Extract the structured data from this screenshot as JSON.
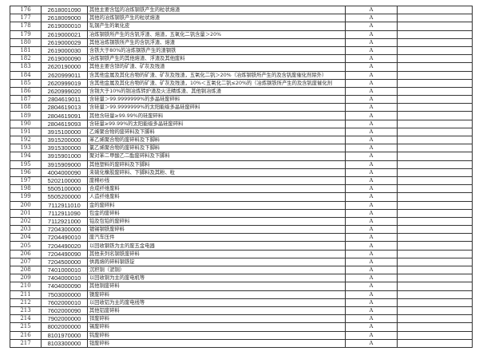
{
  "rows": [
    [
      "176",
      "2618001090",
      "其他主要含锰的冶炼钢铁产生的粒状熔渣",
      "A",
      ""
    ],
    [
      "177",
      "2618009000",
      "其他的冶炼钢铁产生的粒状熔渣",
      "A",
      ""
    ],
    [
      "178",
      "2619000010",
      "轧钢产生的氧化皮",
      "A",
      ""
    ],
    [
      "179",
      "2619000021",
      "冶炼钢铁所产生的含钒浮渣、熔渣，五氧化二钒含量＞20%",
      "A",
      ""
    ],
    [
      "180",
      "2619000029",
      "其他冶炼钢铁所产生的含钒浮渣、熔渣",
      "A",
      ""
    ],
    [
      "181",
      "2619000030",
      "含铁大于80%的冶炼钢铁产生的渣钢铁",
      "A",
      ""
    ],
    [
      "182",
      "2619000090",
      "冶炼钢铁产生的其他熔渣、浮渣及其他废料",
      "A",
      ""
    ],
    [
      "183",
      "2620190000",
      "其他主要含锌的矿渣、矿灰及残渣",
      "A",
      ""
    ],
    [
      "184",
      "2620999011",
      "含其他金属及其化合物的矿渣、矿灰及残渣，五氧化二钒＞20%（冶炼钢铁所产生的及含钒废催化剂除外）",
      "A",
      ""
    ],
    [
      "185",
      "2620999019",
      "含其他金属及其化合物的矿渣、矿灰及残渣，10%＜五氧化二钒≤20%的（冶炼钢铁所产生的及含钒废催化剂",
      "A",
      ""
    ],
    [
      "186",
      "2620999020",
      "含铜大于10%的铜冶炼转炉渣及火法精炼渣、其他铜冶炼渣",
      "A",
      ""
    ],
    [
      "187",
      "2804619011",
      "含硅量＞99.9999999%的多晶硅废碎料",
      "A",
      ""
    ],
    [
      "188",
      "2804619013",
      "含硅量＞99.9999999%的太阳能级多晶硅废碎料",
      "A",
      ""
    ],
    [
      "189",
      "2804619091",
      "其他含硅量≥99.99%的硅废碎料",
      "A",
      ""
    ],
    [
      "190",
      "2804619093",
      "含硅量≥99.99%的太阳能级多晶硅废碎料",
      "A",
      ""
    ],
    [
      "191",
      "3915100000",
      "乙烯聚合物的废碎料及下脚料",
      "A",
      ""
    ],
    [
      "192",
      "3915200000",
      "苯乙烯聚合物的废碎料及下脚料",
      "A",
      ""
    ],
    [
      "193",
      "3915300000",
      "氯乙烯聚合物的废碎料及下脚料",
      "A",
      ""
    ],
    [
      "194",
      "3915901000",
      "聚对苯二甲酸乙二酯废碎料及下脚料",
      "A",
      ""
    ],
    [
      "195",
      "3915909000",
      "其他塑料的废碎料及下脚料",
      "A",
      ""
    ],
    [
      "196",
      "4004000090",
      "未硫化橡胶废碎料、下脚料及其粉、粒",
      "A",
      ""
    ],
    [
      "197",
      "5202100000",
      "废棉纱线",
      "A",
      ""
    ],
    [
      "198",
      "5505100000",
      "合成纤维废料",
      "A",
      ""
    ],
    [
      "199",
      "5505200000",
      "人造纤维废料",
      "A",
      ""
    ],
    [
      "200",
      "7112911010",
      "金的废碎料",
      "A",
      ""
    ],
    [
      "201",
      "7112911090",
      "包金的废碎料",
      "A",
      ""
    ],
    [
      "202",
      "7112921000",
      "铂及包铂的废碎料",
      "A",
      ""
    ],
    [
      "203",
      "7204300000",
      "镀锡钢铁废碎料",
      "A",
      ""
    ],
    [
      "204",
      "7204490010",
      "废汽车压件",
      "A",
      ""
    ],
    [
      "205",
      "7204490020",
      "以回收钢铁为主的废五金电器",
      "A",
      ""
    ],
    [
      "206",
      "7204490090",
      "其他未列名钢铁废碎料",
      "A",
      ""
    ],
    [
      "207",
      "7204500000",
      "供再熔的碎料钢铁锭",
      "A",
      ""
    ],
    [
      "208",
      "7401000010",
      "沉积铜（泥铜）",
      "A",
      ""
    ],
    [
      "209",
      "7404000010",
      "以回收铜为主的废电机等",
      "A",
      ""
    ],
    [
      "210",
      "7404000090",
      "其他铜废碎料",
      "A",
      ""
    ],
    [
      "211",
      "7503000000",
      "镍废碎料",
      "A",
      ""
    ],
    [
      "212",
      "7602000010",
      "以回收铝为主的废电线等",
      "A",
      ""
    ],
    [
      "213",
      "7602000090",
      "其他铝废碎料",
      "A",
      ""
    ],
    [
      "214",
      "7902000000",
      "锌废碎料",
      "A",
      ""
    ],
    [
      "215",
      "8002000000",
      "锡废碎料",
      "A",
      ""
    ],
    [
      "216",
      "8101970000",
      "钨废碎料",
      "A",
      ""
    ],
    [
      "217",
      "8103300000",
      "钽废碎料",
      "A",
      ""
    ]
  ]
}
